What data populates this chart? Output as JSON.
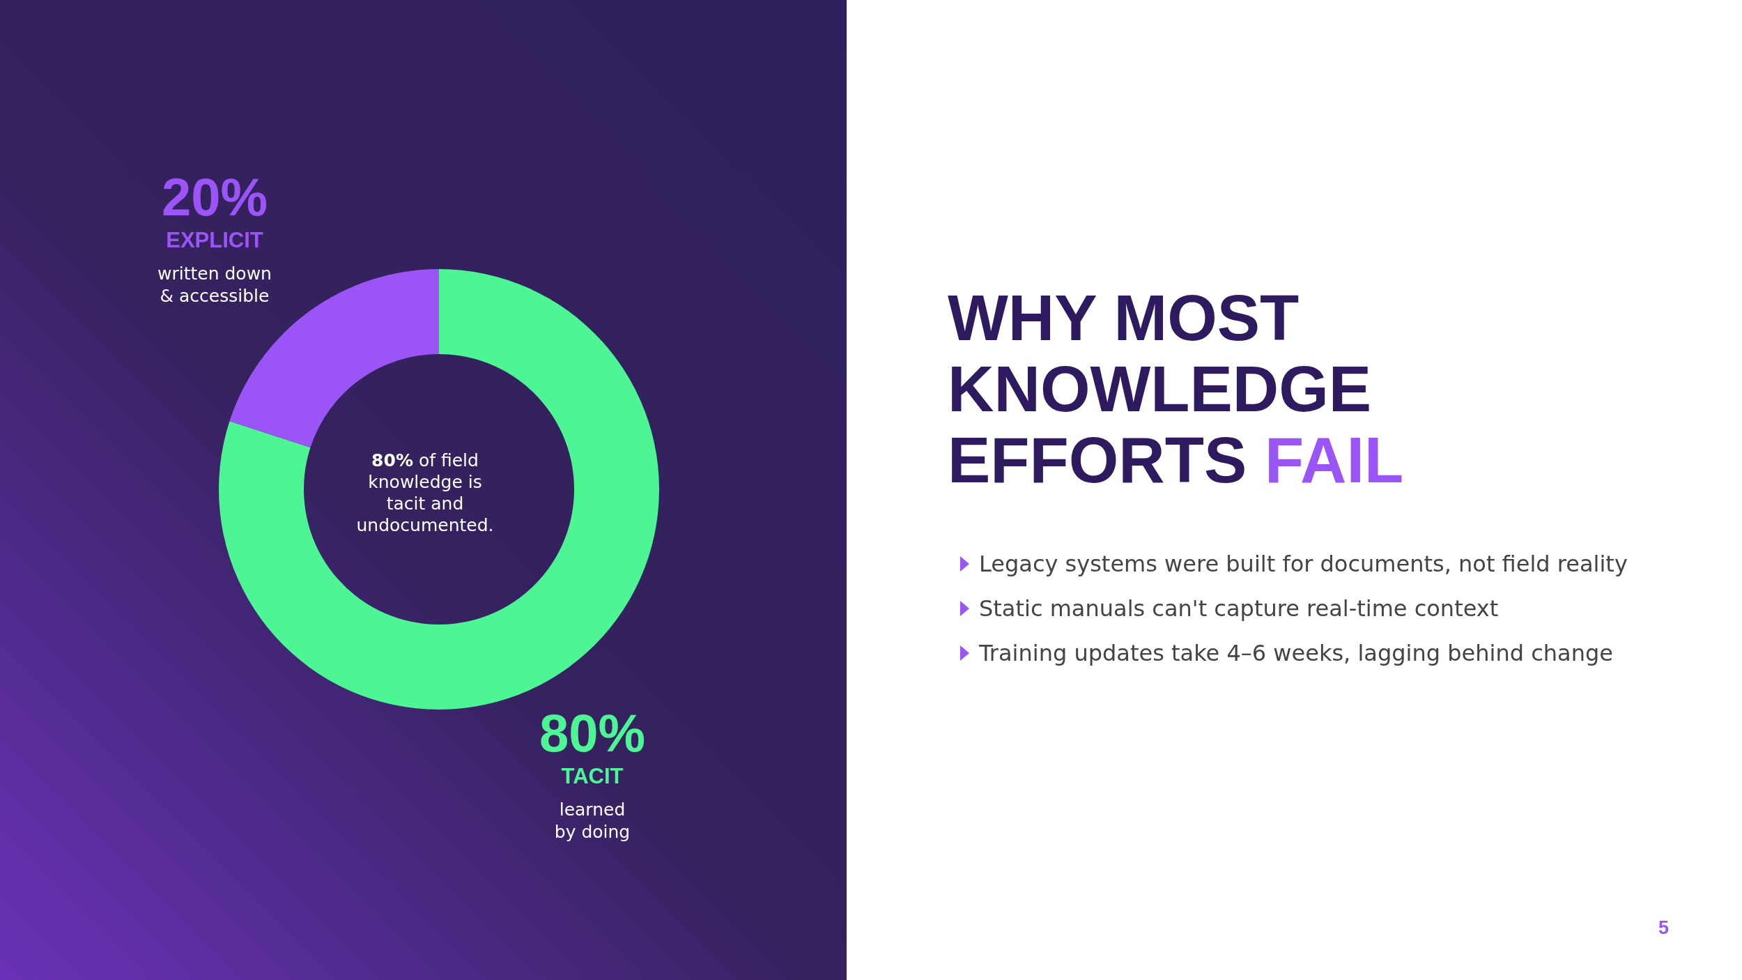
{
  "chart_data": {
    "type": "donut",
    "title": "WHY MOST KNOWLEDGE EFFORTS FAIL",
    "categories": [
      "TACIT",
      "EXPLICIT"
    ],
    "values": [
      80,
      20
    ],
    "value_labels": [
      "80%",
      "20%"
    ],
    "colors": [
      "#4df595",
      "#9b55f7"
    ],
    "annotations": [
      "learned by doing",
      "written down & accessible",
      "80% of field knowledge is tacit and undocumented.",
      "Legacy systems were built for documents, not field reality",
      "Static manuals can't capture real-time context",
      "Training updates take 4–6 weeks, lagging behind change",
      "5"
    ]
  }
}
